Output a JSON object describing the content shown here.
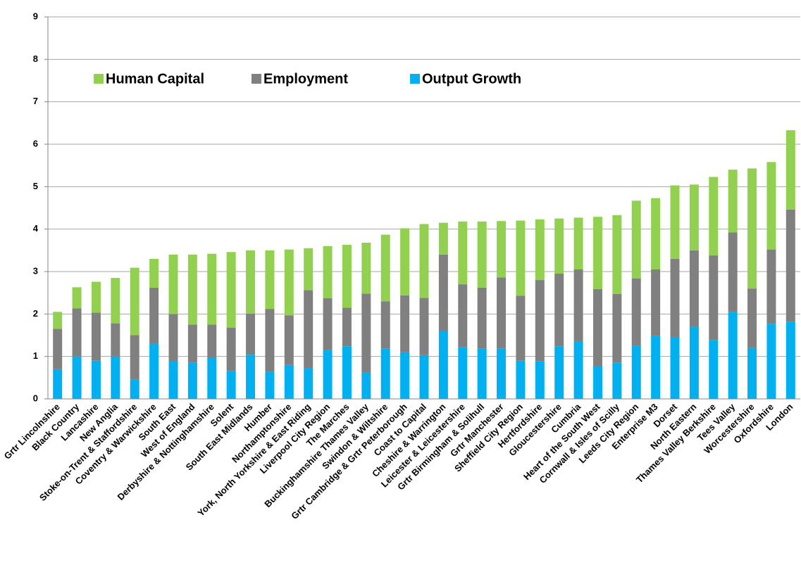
{
  "chart_data": {
    "type": "stacked_bar",
    "categories": [
      "Grtr Lincolnshire",
      "Black Country",
      "Lancashire",
      "New Anglia",
      "Stoke-on-Trent & Staffordshire",
      "Coventry & Warwickshire",
      "South East",
      "West of England",
      "Derbyshire & Nottinghamshire",
      "Solent",
      "South East Midlands",
      "Humber",
      "Northamptonshire",
      "York, North Yorkshire & East Riding",
      "Liverpool City Region",
      "The Marches",
      "Buckinghamshire Thames Valley",
      "Swindon & Wiltshire",
      "Grtr Cambridge & Grtr Peterborough",
      "Coast to Capital",
      "Cheshire & Warrington",
      "Leicester & Leicestershire",
      "Grtr Birmingham & Solihull",
      "Grtr Manchester",
      "Sheffield City Region",
      "Hertfordshire",
      "Gloucestershire",
      "Cumbria",
      "Heart of the South West",
      "Cornwall & Isles of Scilly",
      "Leeds City Region",
      "Enterprise M3",
      "Dorset",
      "North Eastern",
      "Thames Valley Berkshire",
      "Tees Valley",
      "Worcestershire",
      "Oxfordshire",
      "London"
    ],
    "series": [
      {
        "name": "Human Capital",
        "color": "#92d050",
        "values": [
          0.4,
          0.5,
          0.73,
          1.07,
          1.59,
          0.68,
          1.4,
          1.65,
          1.67,
          1.78,
          1.49,
          1.38,
          1.55,
          0.99,
          1.23,
          1.48,
          1.2,
          1.57,
          1.58,
          1.74,
          0.75,
          1.48,
          1.56,
          1.33,
          1.77,
          1.43,
          1.3,
          1.22,
          1.7,
          1.86,
          1.83,
          1.68,
          1.73,
          1.55,
          1.85,
          1.48,
          2.83,
          2.06,
          1.87
        ]
      },
      {
        "name": "Employment",
        "color": "#808080",
        "values": [
          0.95,
          1.13,
          1.13,
          0.78,
          1.05,
          1.32,
          1.12,
          0.9,
          0.78,
          1.03,
          0.97,
          1.48,
          1.17,
          1.84,
          1.22,
          0.91,
          1.86,
          1.11,
          1.34,
          1.35,
          1.8,
          1.48,
          1.44,
          1.68,
          1.53,
          1.91,
          1.71,
          1.7,
          1.82,
          1.62,
          1.59,
          1.56,
          1.85,
          1.8,
          2.0,
          1.87,
          1.4,
          1.75,
          2.64
        ]
      },
      {
        "name": "Output Growth",
        "color": "#00b0f0",
        "values": [
          0.7,
          1.0,
          0.9,
          1.0,
          0.45,
          1.3,
          0.88,
          0.85,
          0.97,
          0.65,
          1.04,
          0.64,
          0.8,
          0.72,
          1.15,
          1.24,
          0.62,
          1.19,
          1.1,
          1.03,
          1.6,
          1.22,
          1.18,
          1.18,
          0.9,
          0.89,
          1.24,
          1.35,
          0.77,
          0.85,
          1.25,
          1.49,
          1.45,
          1.7,
          1.38,
          2.05,
          1.2,
          1.77,
          1.82
        ]
      }
    ],
    "ylim": [
      0,
      9
    ],
    "yticks": [
      0,
      1,
      2,
      3,
      4,
      5,
      6,
      7,
      8,
      9
    ],
    "grid": true
  }
}
